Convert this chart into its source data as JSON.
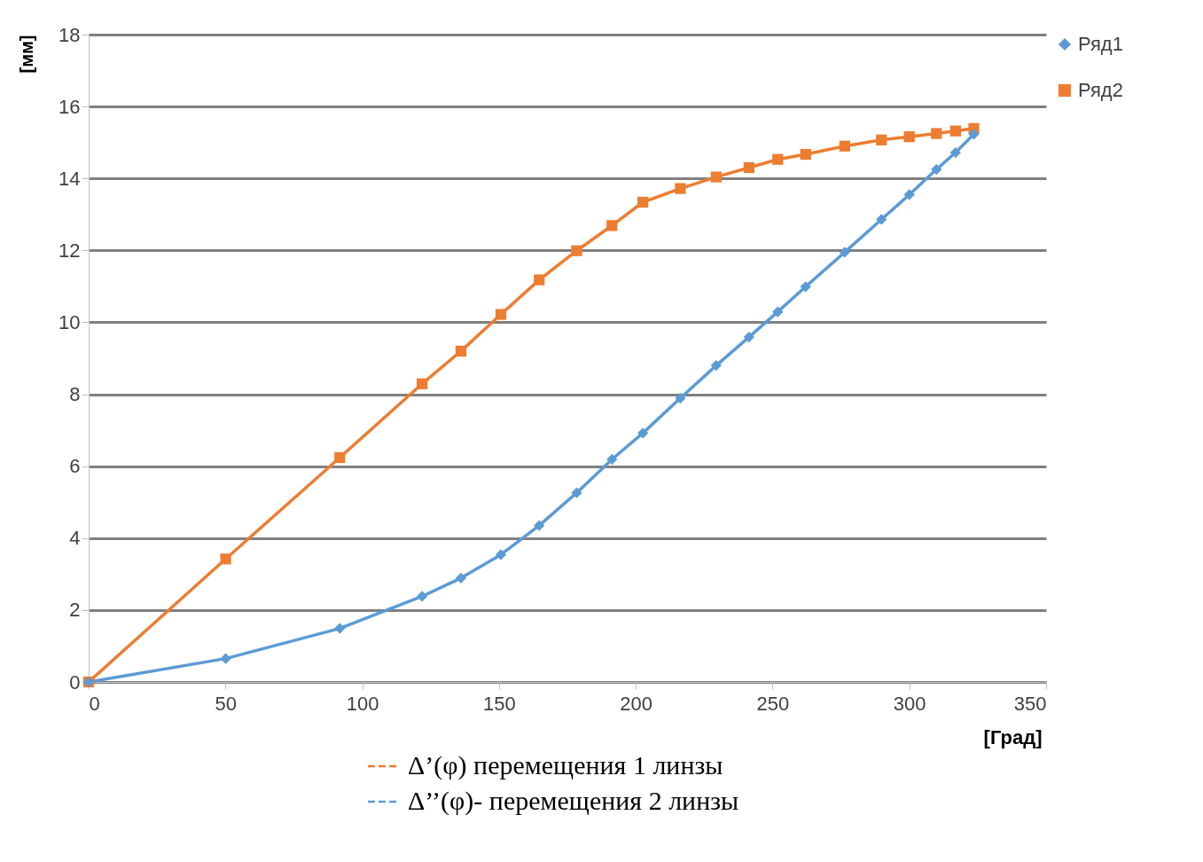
{
  "chart_data": {
    "type": "line",
    "xlabel": "[Град]",
    "ylabel": "[мм]",
    "xlim": [
      0,
      350
    ],
    "xticks": [
      0,
      50,
      100,
      150,
      200,
      250,
      300,
      350
    ],
    "ylim": [
      0,
      18
    ],
    "yticks": [
      0,
      2,
      4,
      6,
      8,
      10,
      12,
      14,
      16,
      18
    ],
    "grid": "y",
    "legend": "right",
    "line_style": "solid",
    "series": [
      {
        "name": "Ряд1",
        "color": "#5b9bd5",
        "marker": "diamond",
        "x": [
          0,
          50.1,
          91.8,
          121.9,
          136.1,
          150.7,
          164.7,
          178.4,
          191.3,
          202.6,
          216.3,
          229.4,
          241.4,
          251.9,
          262.1,
          276.4,
          289.8,
          300,
          309.9,
          316.9,
          323.6
        ],
        "values": [
          0,
          0.65,
          1.49,
          2.38,
          2.89,
          3.54,
          4.35,
          5.26,
          6.19,
          6.92,
          7.89,
          8.8,
          9.59,
          10.29,
          10.99,
          11.95,
          12.86,
          13.55,
          14.25,
          14.72,
          15.23
        ]
      },
      {
        "name": "Ряд2",
        "color": "#ed7d31",
        "marker": "square",
        "x": [
          0,
          50.1,
          91.8,
          121.9,
          136.1,
          150.7,
          164.7,
          178.4,
          191.3,
          202.6,
          216.3,
          229.4,
          241.4,
          251.9,
          262.1,
          276.4,
          289.8,
          300,
          309.9,
          316.9,
          323.6
        ],
        "values": [
          0,
          3.42,
          6.24,
          8.29,
          9.2,
          10.22,
          11.18,
          11.99,
          12.69,
          13.34,
          13.72,
          14.04,
          14.3,
          14.53,
          14.67,
          14.9,
          15.07,
          15.16,
          15.25,
          15.32,
          15.39
        ]
      }
    ],
    "annotations": [
      "Δ’(φ) перемещения 1 линзы",
      "Δ’’(φ)- перемещения 2 линзы"
    ]
  }
}
